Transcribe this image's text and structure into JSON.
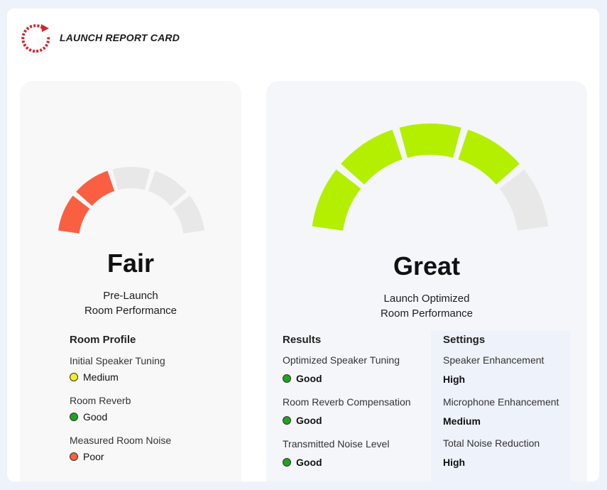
{
  "header": {
    "title": "LAUNCH REPORT CARD"
  },
  "colors": {
    "poor": "#fb5f41",
    "medium": "#f5ef21",
    "good": "#1ea51e",
    "great": "#b4ef00",
    "inactive": "#e8e8e8"
  },
  "pre_launch": {
    "rating": "Fair",
    "gauge_level": 2,
    "gauge_segments": 5,
    "subtitle_line1": "Pre-Launch",
    "subtitle_line2": "Room Performance",
    "section_title": "Room Profile",
    "items": [
      {
        "label": "Initial Speaker Tuning",
        "value": "Medium",
        "status": "medium"
      },
      {
        "label": "Room Reverb",
        "value": "Good",
        "status": "good"
      },
      {
        "label": "Measured Room Noise",
        "value": "Poor",
        "status": "poor"
      }
    ]
  },
  "launch": {
    "rating": "Great",
    "gauge_level": 4,
    "gauge_segments": 5,
    "subtitle_line1": "Launch Optimized",
    "subtitle_line2": "Room Performance",
    "results_title": "Results",
    "results": [
      {
        "label": "Optimized Speaker Tuning",
        "value": "Good",
        "status": "good"
      },
      {
        "label": "Room Reverb Compensation",
        "value": "Good",
        "status": "good"
      },
      {
        "label": "Transmitted Noise Level",
        "value": "Good",
        "status": "good"
      }
    ],
    "settings_title": "Settings",
    "settings": [
      {
        "label": "Speaker Enhancement",
        "value": "High"
      },
      {
        "label": "Microphone Enhancement",
        "value": "Medium"
      },
      {
        "label": "Total Noise Reduction",
        "value": "High"
      }
    ]
  }
}
